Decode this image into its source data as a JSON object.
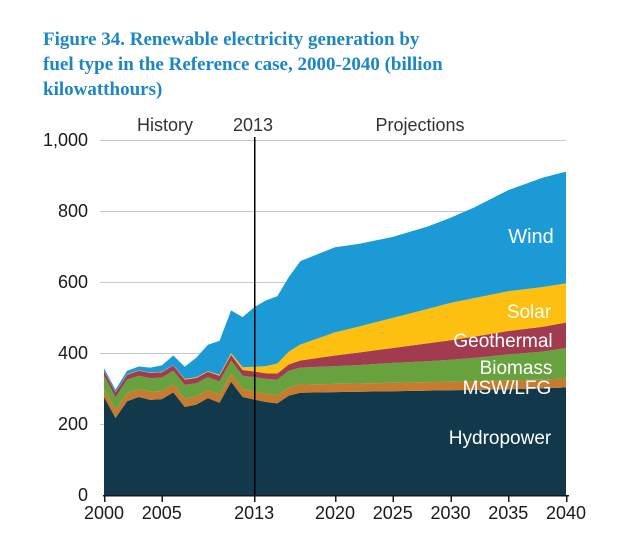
{
  "figure": {
    "title_lines": [
      "Figure 34. Renewable electricity generation by",
      "fuel type in the Reference case, 2000-2040 (billion",
      "kilowatthours)"
    ],
    "title_color": "#1d87c3"
  },
  "chart_data": {
    "type": "area",
    "stacked": true,
    "title": "Renewable electricity generation by fuel type in the Reference case, 2000-2040",
    "unit": "billion kilowatthours",
    "xlabel": "",
    "ylabel": "",
    "xlim": [
      2000,
      2040
    ],
    "ylim": [
      0,
      1000
    ],
    "grid": "horizontal",
    "grid_color": "#c8c8c8",
    "axis_color": "#1a1a1a",
    "tick_label_color": "#1a1a1a",
    "annotation_color": "#333333",
    "divider_year": 2013,
    "divider_color": "#000000",
    "area_label_color": "#ffffff",
    "x": [
      2000,
      2001,
      2002,
      2003,
      2004,
      2005,
      2006,
      2007,
      2008,
      2009,
      2010,
      2011,
      2012,
      2013,
      2014,
      2015,
      2016,
      2017,
      2020,
      2022,
      2025,
      2028,
      2030,
      2032,
      2035,
      2038,
      2040
    ],
    "series": [
      {
        "name": "Hydropower",
        "color": "#12384c",
        "values": [
          276,
          217,
          264,
          276,
          268,
          270,
          289,
          248,
          255,
          273,
          260,
          319,
          276,
          269,
          262,
          258,
          280,
          288,
          290,
          291,
          292,
          294,
          295,
          296,
          298,
          300,
          303
        ]
      },
      {
        "name": "MSW/LFG",
        "color": "#c67b2e",
        "values": [
          23,
          23,
          23,
          23,
          23,
          23,
          23,
          23,
          23,
          23,
          23,
          23,
          23,
          23,
          23,
          23,
          23,
          23,
          23,
          23,
          24,
          24,
          24,
          24,
          25,
          25,
          26
        ]
      },
      {
        "name": "Biomass",
        "color": "#67a23f",
        "values": [
          37,
          35,
          38,
          37,
          38,
          38,
          38,
          39,
          37,
          36,
          37,
          37,
          37,
          40,
          42,
          44,
          47,
          48,
          50,
          52,
          56,
          59,
          62,
          66,
          73,
          79,
          85
        ]
      },
      {
        "name": "Geothermal",
        "color": "#a23b50",
        "values": [
          14,
          14,
          14,
          14,
          15,
          15,
          15,
          15,
          15,
          15,
          16,
          16,
          16,
          16,
          16,
          17,
          18,
          20,
          30,
          35,
          42,
          50,
          55,
          60,
          66,
          70,
          72
        ]
      },
      {
        "name": "Solar",
        "color": "#fdc011",
        "values": [
          1,
          1,
          1,
          1,
          1,
          1,
          1,
          2,
          2,
          2,
          3,
          5,
          8,
          13,
          20,
          28,
          36,
          45,
          65,
          73,
          85,
          97,
          105,
          108,
          112,
          112,
          110
        ]
      },
      {
        "name": "Wind",
        "color": "#1c9ad6",
        "values": [
          6,
          7,
          10,
          11,
          14,
          18,
          27,
          34,
          55,
          74,
          95,
          120,
          141,
          168,
          185,
          190,
          210,
          235,
          240,
          233,
          228,
          232,
          240,
          255,
          285,
          308,
          315
        ]
      }
    ],
    "y_ticks": [
      {
        "value": 0,
        "label": "0"
      },
      {
        "value": 200,
        "label": "200"
      },
      {
        "value": 400,
        "label": "400"
      },
      {
        "value": 600,
        "label": "600"
      },
      {
        "value": 800,
        "label": "800"
      },
      {
        "value": 1000,
        "label": "1,000"
      }
    ],
    "x_ticks": [
      {
        "value": 2000,
        "label": "2000"
      },
      {
        "value": 2005,
        "label": "2005"
      },
      {
        "value": 2013,
        "label": "2013"
      },
      {
        "value": 2020,
        "label": "2020"
      },
      {
        "value": 2025,
        "label": "2025"
      },
      {
        "value": 2030,
        "label": "2030"
      },
      {
        "value": 2035,
        "label": "2035"
      },
      {
        "value": 2040,
        "label": "2040"
      }
    ],
    "annotations": [
      {
        "text": "History"
      },
      {
        "text": "2013"
      },
      {
        "text": "Projections"
      }
    ]
  }
}
